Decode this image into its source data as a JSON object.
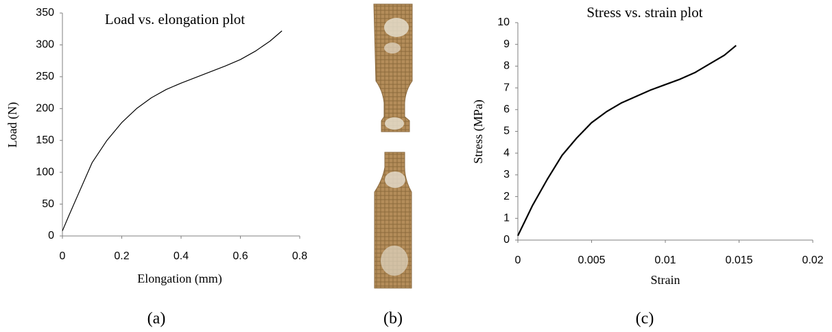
{
  "chart_data": [
    {
      "type": "line",
      "title": "Load vs. elongation plot",
      "x_label": "Elongation (mm)",
      "y_label": "Load (N)",
      "x": [
        0,
        0.02,
        0.05,
        0.1,
        0.15,
        0.2,
        0.25,
        0.3,
        0.35,
        0.4,
        0.45,
        0.5,
        0.55,
        0.6,
        0.65,
        0.7,
        0.74
      ],
      "values": [
        8,
        30,
        62,
        115,
        150,
        178,
        200,
        217,
        230,
        240,
        249,
        258,
        267,
        277,
        290,
        306,
        322
      ],
      "color": "#000000",
      "xlim": [
        0,
        0.8
      ],
      "ylim": [
        0,
        350
      ],
      "xticks": [
        0,
        0.2,
        0.4,
        0.6,
        0.8
      ],
      "yticks": [
        0,
        50,
        100,
        150,
        200,
        250,
        300,
        350
      ]
    },
    {
      "type": "line",
      "title": "Stress vs. strain plot",
      "x_label": "Strain",
      "y_label": "Stress (MPa)",
      "x": [
        0,
        0.0005,
        0.001,
        0.002,
        0.003,
        0.004,
        0.005,
        0.006,
        0.007,
        0.008,
        0.009,
        0.01,
        0.011,
        0.012,
        0.013,
        0.014,
        0.0148
      ],
      "values": [
        0.2,
        0.9,
        1.6,
        2.8,
        3.9,
        4.7,
        5.4,
        5.9,
        6.3,
        6.6,
        6.9,
        7.15,
        7.4,
        7.7,
        8.1,
        8.5,
        8.95
      ],
      "color": "#000000",
      "xlim": [
        0,
        0.02
      ],
      "ylim": [
        0,
        10
      ],
      "xticks": [
        0,
        0.005,
        0.01,
        0.015,
        0.02
      ],
      "yticks": [
        0,
        1,
        2,
        3,
        4,
        5,
        6,
        7,
        8,
        9,
        10
      ]
    }
  ],
  "captions": [
    "(a)",
    "(b)",
    "(c)"
  ]
}
